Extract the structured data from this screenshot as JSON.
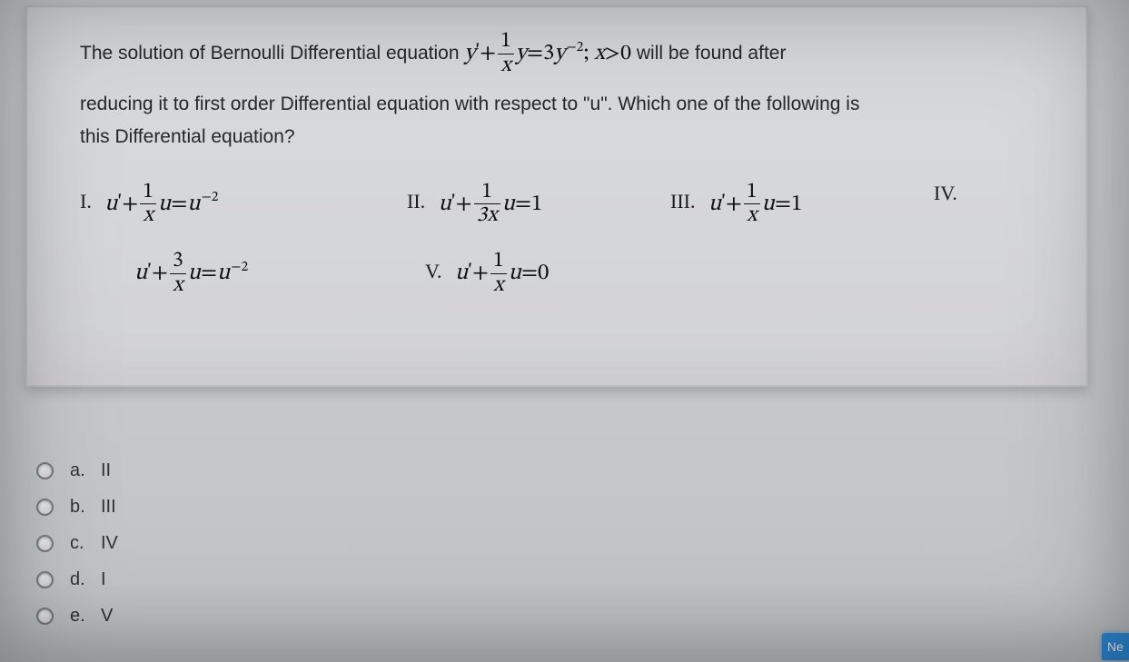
{
  "question": {
    "line1a": "The solution of Bernoulli Differential equation ",
    "cond": " will be found after",
    "line2": "reducing it to first order Differential equation with respect to \"u\". Which one of the following is",
    "line3": "this Differential equation?",
    "eq": {
      "lhs_y": "y",
      "prime": "'",
      "plus": "+",
      "frac_num": "1",
      "frac_den": "x",
      "y": "y",
      "equals": "=",
      "coef": "3",
      "yvar": "y",
      "exp": "−2",
      "semi": ";  ",
      "xgt0": "x>0"
    }
  },
  "items": {
    "I": {
      "rn": "I.",
      "u": "u",
      "prime": "'",
      "plus": "+",
      "num": "1",
      "den": "x",
      "uv": "u",
      "eq": "=",
      "rhs_u": "u",
      "rhs_exp": "−2"
    },
    "II": {
      "rn": "II.",
      "u": "u",
      "prime": "'",
      "plus": "+",
      "num": "1",
      "den": "3x",
      "uv": "u",
      "eq": "=",
      "rhs": "1"
    },
    "III": {
      "rn": "III.",
      "u": "u",
      "prime": "'",
      "plus": "+",
      "num": "1",
      "den": "x",
      "uv": "u",
      "eq": "=",
      "rhs": "1"
    },
    "IVlabel": "IV.",
    "IV": {
      "u": "u",
      "prime": "'",
      "plus": "+",
      "num": "3",
      "den": "x",
      "uv": "u",
      "eq": "=",
      "rhs_u": "u",
      "rhs_exp": "−2"
    },
    "V": {
      "rn": "V.",
      "u": "u",
      "prime": "'",
      "plus": "+",
      "num": "1",
      "den": "x",
      "uv": "u",
      "eq": "=",
      "rhs": "0"
    }
  },
  "options": [
    {
      "letter": "a.",
      "text": "II"
    },
    {
      "letter": "b.",
      "text": "III"
    },
    {
      "letter": "c.",
      "text": "IV"
    },
    {
      "letter": "d.",
      "text": "I"
    },
    {
      "letter": "e.",
      "text": "V"
    }
  ],
  "button": {
    "next": "Ne"
  }
}
